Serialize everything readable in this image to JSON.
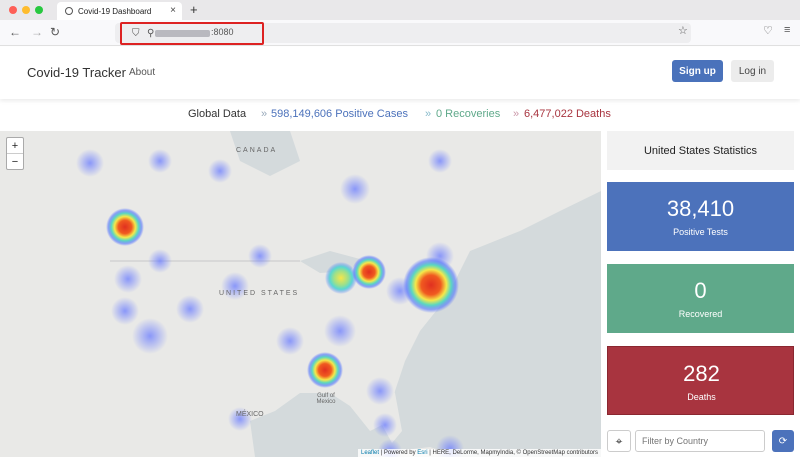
{
  "browser": {
    "tab_title": "Covid-19 Dashboard",
    "new_tab": "+",
    "url_port": ":8080"
  },
  "header": {
    "brand": "Covid-19 Tracker",
    "about": "About",
    "signup": "Sign up",
    "login": "Log in"
  },
  "global": {
    "label": "Global Data",
    "positive": "598,149,606 Positive Cases",
    "recoveries": "0 Recoveries",
    "deaths": "6,477,022 Deaths"
  },
  "map": {
    "zoom_in": "+",
    "zoom_out": "−",
    "labels": [
      "CANADA",
      "UNITED STATES",
      "MÉXICO",
      "Gulf of Mexico"
    ],
    "attribution_leaflet": "Leaflet",
    "attribution_mid": " | Powered by ",
    "attribution_esri": "Esri",
    "attribution_rest": " | HERE, DeLorme, MapmyIndia, © OpenStreetMap contributors"
  },
  "stats": {
    "title": "United States Statistics",
    "positive_value": "38,410",
    "positive_label": "Positive Tests",
    "recovered_value": "0",
    "recovered_label": "Recovered",
    "deaths_value": "282",
    "deaths_label": "Deaths",
    "filter_placeholder": "Filter by Country"
  },
  "colors": {
    "primary": "#4c72bb",
    "success": "#5fa98a",
    "danger": "#a8343f"
  }
}
